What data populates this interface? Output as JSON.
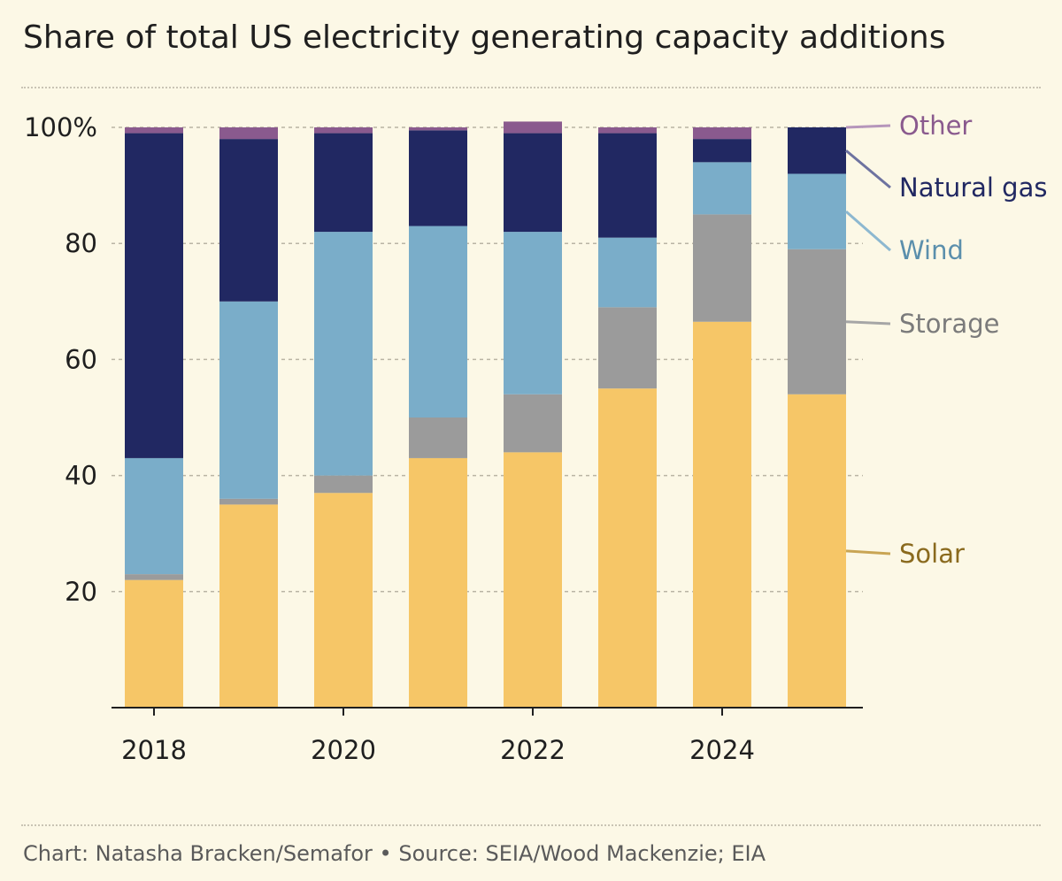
{
  "title": "Share of total US electricity generating capacity additions",
  "footer": "Chart: Natasha Bracken/Semafor • Source: SEIA/Wood Mackenzie; EIA",
  "chart_data": {
    "type": "bar",
    "stacked": true,
    "categories": [
      "2018",
      "2019",
      "2020",
      "2021",
      "2022",
      "2023",
      "2024",
      "2025"
    ],
    "x_tick_labels": [
      "2018",
      "2020",
      "2022",
      "2024"
    ],
    "y_tick_labels": [
      "100%",
      "80",
      "60",
      "40",
      "20"
    ],
    "y_ticks": [
      100,
      80,
      60,
      40,
      20
    ],
    "ylim": [
      0,
      100
    ],
    "grid": true,
    "legend_placement": "right, direct labels",
    "series": [
      {
        "name": "Solar",
        "color": "#f6c667",
        "label_color": "#8a6a1e",
        "line_color": "#c9a554",
        "values": [
          22,
          35,
          37,
          43,
          44,
          55,
          66.5,
          54
        ]
      },
      {
        "name": "Storage",
        "color": "#9b9b9b",
        "label_color": "#7b7b7b",
        "line_color": "#a6a6a6",
        "values": [
          1,
          1,
          3,
          7,
          10,
          14,
          18.5,
          25
        ]
      },
      {
        "name": "Wind",
        "color": "#7aadc9",
        "label_color": "#5b8fac",
        "line_color": "#8db8d0",
        "values": [
          20,
          34,
          42,
          33,
          28,
          12,
          9,
          13
        ]
      },
      {
        "name": "Natural gas",
        "color": "#212862",
        "label_color": "#212862",
        "line_color": "#6e73a0",
        "values": [
          56,
          28,
          17,
          16.5,
          17,
          18,
          4,
          8
        ]
      },
      {
        "name": "Other",
        "color": "#8a5a8e",
        "label_color": "#8a5a8e",
        "line_color": "#b696bb",
        "values": [
          1,
          2,
          1,
          0.5,
          2,
          1,
          2,
          0
        ]
      }
    ]
  }
}
